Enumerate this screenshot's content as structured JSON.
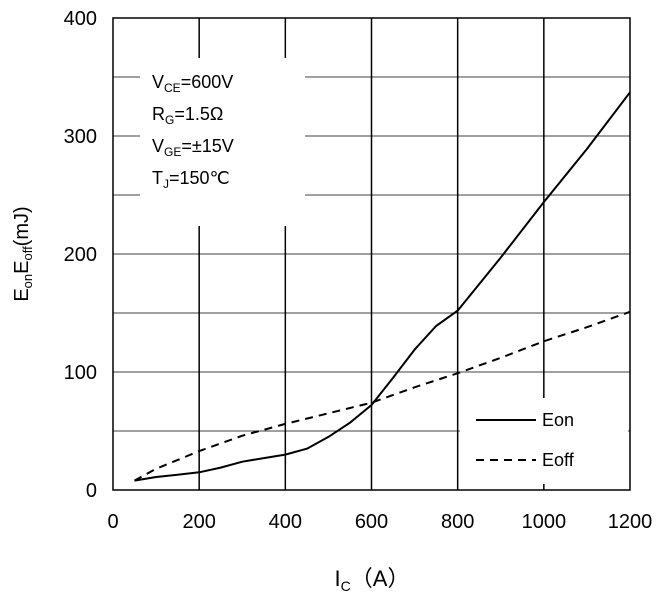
{
  "chart_data": {
    "type": "line",
    "xlabel": {
      "main": "I",
      "sub": "C",
      "rest": "（A）"
    },
    "ylabel": {
      "p1": "E",
      "s1": "on",
      "p2": "E",
      "s2": "off",
      "p3": "(mJ)"
    },
    "xlim": [
      0,
      1200
    ],
    "ylim": [
      0,
      400
    ],
    "xticks": [
      "0",
      "200",
      "400",
      "600",
      "800",
      "1000",
      "1200"
    ],
    "yticks": [
      "0",
      "100",
      "200",
      "300",
      "400"
    ],
    "grid": true,
    "legend_position": "bottom-right",
    "annotation": [
      {
        "main": "V",
        "sub": "CE",
        "rest": "=600V"
      },
      {
        "main": "R",
        "sub": "G",
        "rest": "=1.5Ω"
      },
      {
        "main": "V",
        "sub": "GE",
        "rest": "=±15V"
      },
      {
        "main": "T",
        "sub": "J",
        "rest": "=150℃"
      }
    ],
    "series": [
      {
        "name": "Eon",
        "style": "solid",
        "x": [
          50,
          100,
          150,
          200,
          250,
          300,
          350,
          400,
          450,
          500,
          550,
          600,
          650,
          700,
          750,
          800,
          900,
          1000,
          1100,
          1200
        ],
        "y": [
          8,
          11,
          13,
          15,
          19,
          24,
          27,
          30,
          35,
          45,
          57,
          72,
          95,
          119,
          139,
          152,
          197,
          244,
          289,
          337
        ]
      },
      {
        "name": "Eoff",
        "style": "dashed",
        "x": [
          50,
          100,
          200,
          300,
          400,
          500,
          600,
          700,
          800,
          900,
          1000,
          1100,
          1200
        ],
        "y": [
          8,
          18,
          33,
          46,
          56,
          65,
          74,
          87,
          99,
          112,
          126,
          138,
          151
        ]
      }
    ]
  }
}
